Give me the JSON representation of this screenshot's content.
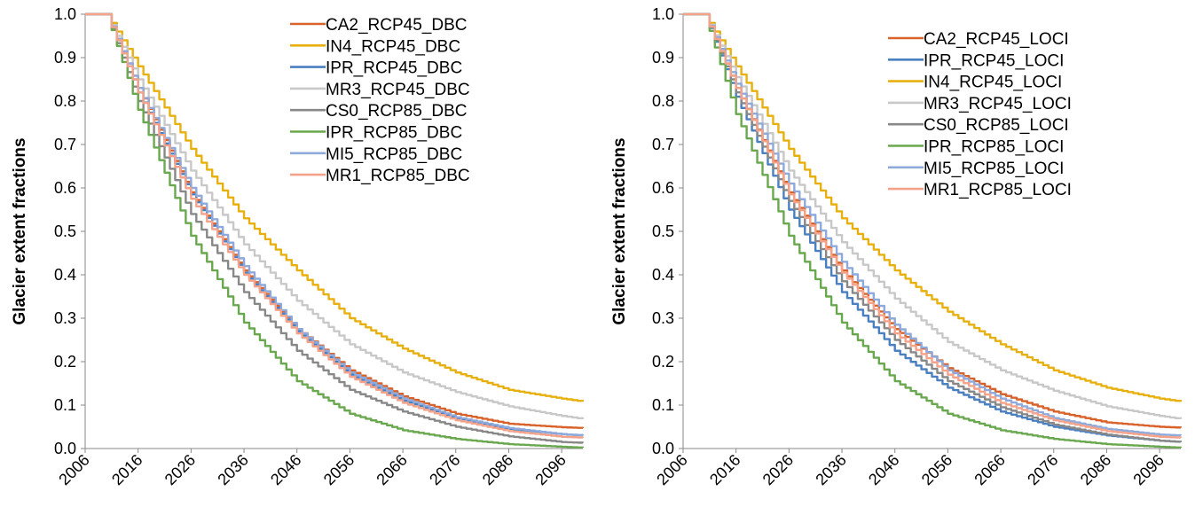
{
  "chart_data": [
    {
      "type": "line",
      "title": "",
      "xlabel": "",
      "ylabel": "Glacier extent fractions",
      "xlim": [
        2006,
        2100
      ],
      "ylim": [
        0.0,
        1.0
      ],
      "x_ticks": [
        2006,
        2016,
        2026,
        2036,
        2046,
        2056,
        2066,
        2076,
        2086,
        2096
      ],
      "y_ticks": [
        "0.0",
        "0.1",
        "0.2",
        "0.3",
        "0.4",
        "0.5",
        "0.6",
        "0.7",
        "0.8",
        "0.9",
        "1.0"
      ],
      "grid": false,
      "legend_position": "top-right",
      "x": [
        2006,
        2010,
        2016,
        2026,
        2036,
        2046,
        2056,
        2066,
        2076,
        2086,
        2096,
        2100
      ],
      "series": [
        {
          "name": "CA2_RCP45_DBC",
          "color": "#d8622a",
          "values": [
            1.0,
            1.0,
            0.83,
            0.59,
            0.41,
            0.275,
            0.18,
            0.12,
            0.08,
            0.057,
            0.049,
            0.047
          ]
        },
        {
          "name": "IN4_RCP45_DBC",
          "color": "#e8b00e",
          "values": [
            1.0,
            1.0,
            0.88,
            0.69,
            0.53,
            0.41,
            0.3,
            0.23,
            0.175,
            0.135,
            0.115,
            0.108
          ]
        },
        {
          "name": "IPR_RCP45_DBC",
          "color": "#4a7fc0",
          "values": [
            1.0,
            1.0,
            0.82,
            0.585,
            0.405,
            0.27,
            0.17,
            0.11,
            0.07,
            0.045,
            0.033,
            0.03
          ]
        },
        {
          "name": "MR3_RCP45_DBC",
          "color": "#c8c8c8",
          "values": [
            1.0,
            1.0,
            0.85,
            0.64,
            0.47,
            0.34,
            0.24,
            0.175,
            0.13,
            0.097,
            0.075,
            0.068
          ]
        },
        {
          "name": "CS0_RCP85_DBC",
          "color": "#888888",
          "values": [
            1.0,
            1.0,
            0.8,
            0.54,
            0.36,
            0.225,
            0.135,
            0.085,
            0.05,
            0.028,
            0.015,
            0.013
          ]
        },
        {
          "name": "IPR_RCP85_DBC",
          "color": "#6aa84f",
          "values": [
            1.0,
            1.0,
            0.78,
            0.49,
            0.29,
            0.155,
            0.08,
            0.042,
            0.022,
            0.01,
            0.004,
            0.002
          ]
        },
        {
          "name": "MI5_RCP85_DBC",
          "color": "#8ea9db",
          "values": [
            1.0,
            1.0,
            0.83,
            0.6,
            0.42,
            0.275,
            0.175,
            0.115,
            0.072,
            0.047,
            0.033,
            0.03
          ]
        },
        {
          "name": "MR1_RCP85_DBC",
          "color": "#f4a38a",
          "values": [
            1.0,
            1.0,
            0.82,
            0.575,
            0.4,
            0.265,
            0.165,
            0.105,
            0.065,
            0.04,
            0.027,
            0.025
          ]
        }
      ]
    },
    {
      "type": "line",
      "title": "",
      "xlabel": "",
      "ylabel": "Glacier extent fractions",
      "xlim": [
        2006,
        2100
      ],
      "ylim": [
        0.0,
        1.0
      ],
      "x_ticks": [
        2006,
        2016,
        2026,
        2036,
        2046,
        2056,
        2066,
        2076,
        2086,
        2096
      ],
      "y_ticks": [
        "0.0",
        "0.1",
        "0.2",
        "0.3",
        "0.4",
        "0.5",
        "0.6",
        "0.7",
        "0.8",
        "0.9",
        "1.0"
      ],
      "grid": false,
      "legend_position": "top-right",
      "x": [
        2006,
        2010,
        2016,
        2026,
        2036,
        2046,
        2056,
        2066,
        2076,
        2086,
        2096,
        2100
      ],
      "series": [
        {
          "name": "CA2_RCP45_LOCI",
          "color": "#d8622a",
          "values": [
            1.0,
            1.0,
            0.83,
            0.59,
            0.41,
            0.275,
            0.185,
            0.125,
            0.085,
            0.06,
            0.05,
            0.048
          ]
        },
        {
          "name": "IPR_RCP45_LOCI",
          "color": "#4a7fc0",
          "values": [
            1.0,
            1.0,
            0.81,
            0.55,
            0.36,
            0.225,
            0.14,
            0.085,
            0.05,
            0.03,
            0.018,
            0.015
          ]
        },
        {
          "name": "IN4_RCP45_LOCI",
          "color": "#e8b00e",
          "values": [
            1.0,
            1.0,
            0.88,
            0.69,
            0.53,
            0.41,
            0.315,
            0.24,
            0.18,
            0.14,
            0.115,
            0.108
          ]
        },
        {
          "name": "MR3_RCP45_LOCI",
          "color": "#c8c8c8",
          "values": [
            1.0,
            1.0,
            0.855,
            0.64,
            0.475,
            0.345,
            0.245,
            0.18,
            0.133,
            0.097,
            0.075,
            0.068
          ]
        },
        {
          "name": "CS0_RCP85_LOCI",
          "color": "#888888",
          "values": [
            1.0,
            1.0,
            0.82,
            0.57,
            0.385,
            0.25,
            0.155,
            0.095,
            0.055,
            0.032,
            0.018,
            0.015
          ]
        },
        {
          "name": "IPR_RCP85_LOCI",
          "color": "#6aa84f",
          "values": [
            1.0,
            1.0,
            0.77,
            0.49,
            0.29,
            0.155,
            0.08,
            0.042,
            0.022,
            0.01,
            0.004,
            0.002
          ]
        },
        {
          "name": "MI5_RCP85_LOCI",
          "color": "#8ea9db",
          "values": [
            1.0,
            1.0,
            0.84,
            0.61,
            0.43,
            0.285,
            0.18,
            0.115,
            0.07,
            0.045,
            0.032,
            0.03
          ]
        },
        {
          "name": "MR1_RCP85_LOCI",
          "color": "#f4a38a",
          "values": [
            1.0,
            1.0,
            0.83,
            0.585,
            0.405,
            0.265,
            0.17,
            0.105,
            0.065,
            0.04,
            0.027,
            0.025
          ]
        }
      ]
    }
  ]
}
